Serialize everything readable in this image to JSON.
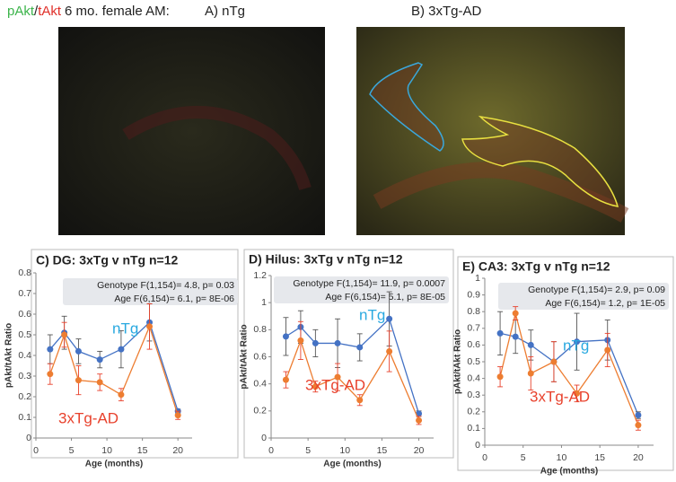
{
  "figure": {
    "stain_green": "pAkt",
    "slash": "/",
    "stain_red": "tAkt",
    "caption": "6 mo. female AM:",
    "panel_a": "A) nTg",
    "panel_b": "B) 3xTg-AD"
  },
  "chart_data": [
    {
      "type": "line",
      "title": "C) DG: 3xTg v nTg n=12",
      "xlabel": "Age (months)",
      "ylabel": "pAkt/tAkt Ratio",
      "annotations": [
        "Genotype F(1,154)= 4.8, p= 0.03",
        "Age F(6,154)= 6.1, p= 8E-06"
      ],
      "x": [
        2,
        4,
        6,
        9,
        12,
        16,
        20
      ],
      "xlim": [
        0,
        22
      ],
      "xticks": [
        0,
        5,
        10,
        15,
        20
      ],
      "ylim": [
        0,
        0.8
      ],
      "yticks": [
        0,
        0.1,
        0.2,
        0.3,
        0.4,
        0.5,
        0.6,
        0.7,
        0.8
      ],
      "series": [
        {
          "name": "nTg",
          "color": "#4472c4",
          "label_color": "#29a9e0",
          "values": [
            0.43,
            0.51,
            0.42,
            0.38,
            0.43,
            0.56,
            0.13
          ],
          "errors": [
            0.07,
            0.08,
            0.06,
            0.04,
            0.09,
            0.09,
            0.01
          ]
        },
        {
          "name": "3xTg-AD",
          "color": "#ed7d31",
          "label_color": "#e8412c",
          "values": [
            0.31,
            0.5,
            0.28,
            0.27,
            0.21,
            0.54,
            0.11
          ],
          "errors": [
            0.05,
            0.06,
            0.07,
            0.04,
            0.03,
            0.11,
            0.02
          ]
        }
      ]
    },
    {
      "type": "line",
      "title": "D) Hilus: 3xTg v nTg n=12",
      "xlabel": "Age (months)",
      "ylabel": "pAkt/tAkt Ratio",
      "annotations": [
        "Genotype F(1,154)= 11.9, p= 0.0007",
        "Age F(6,154)= 5.1, p= 8E-05"
      ],
      "x": [
        2,
        4,
        6,
        9,
        12,
        16,
        20
      ],
      "xlim": [
        0,
        22
      ],
      "xticks": [
        0,
        5,
        10,
        15,
        20
      ],
      "ylim": [
        0,
        1.2
      ],
      "yticks": [
        0,
        0.2,
        0.4,
        0.6,
        0.8,
        1,
        1.2
      ],
      "series": [
        {
          "name": "nTg",
          "color": "#4472c4",
          "label_color": "#29a9e0",
          "values": [
            0.75,
            0.82,
            0.7,
            0.7,
            0.67,
            0.88,
            0.18
          ],
          "errors": [
            0.14,
            0.12,
            0.1,
            0.18,
            0.1,
            0.2,
            0.02
          ]
        },
        {
          "name": "3xTg-AD",
          "color": "#ed7d31",
          "label_color": "#e8412c",
          "values": [
            0.43,
            0.72,
            0.38,
            0.45,
            0.28,
            0.64,
            0.13
          ],
          "errors": [
            0.06,
            0.14,
            0.04,
            0.1,
            0.04,
            0.15,
            0.03
          ]
        }
      ]
    },
    {
      "type": "line",
      "title": "E) CA3: 3xTg v nTg n=12",
      "xlabel": "Age (months)",
      "ylabel": "pAkt/tAkt Ratio",
      "annotations": [
        "Genotype F(1,154)= 2.9, p= 0.09",
        "Age F(6,154)= 1.2, p= 1E-05"
      ],
      "x": [
        2,
        4,
        6,
        9,
        12,
        16,
        20
      ],
      "xlim": [
        0,
        22
      ],
      "xticks": [
        0,
        5,
        10,
        15,
        20
      ],
      "ylim": [
        0,
        1
      ],
      "yticks": [
        0,
        0.1,
        0.2,
        0.3,
        0.4,
        0.5,
        0.6,
        0.7,
        0.8,
        0.9,
        1
      ],
      "series": [
        {
          "name": "nTg",
          "color": "#4472c4",
          "label_color": "#29a9e0",
          "values": [
            0.67,
            0.65,
            0.6,
            0.5,
            0.62,
            0.63,
            0.18
          ],
          "errors": [
            0.13,
            0.1,
            0.09,
            0.12,
            0.17,
            0.12,
            0.02
          ]
        },
        {
          "name": "3xTg-AD",
          "color": "#ed7d31",
          "label_color": "#e8412c",
          "values": [
            0.41,
            0.79,
            0.43,
            0.5,
            0.31,
            0.57,
            0.12
          ],
          "errors": [
            0.06,
            0.04,
            0.1,
            0.12,
            0.05,
            0.1,
            0.03
          ]
        }
      ]
    }
  ]
}
